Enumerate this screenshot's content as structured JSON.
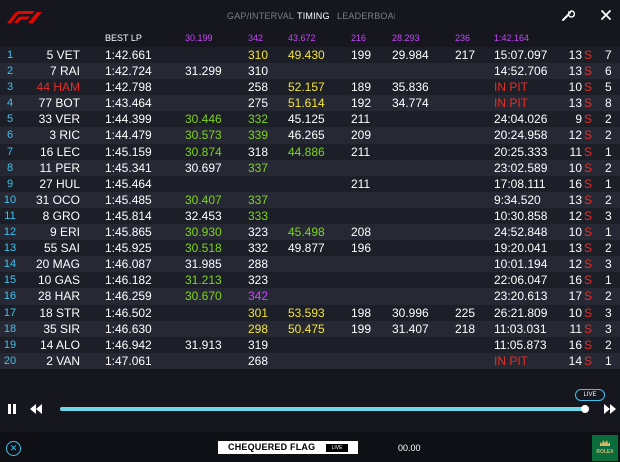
{
  "tabs": [
    {
      "label": "GAP/INTERVAL",
      "active": false
    },
    {
      "label": "TIMING",
      "active": true
    },
    {
      "label": "LEADERBOARD",
      "active": false
    }
  ],
  "headers": {
    "best_lap": "BEST LP",
    "s1_best": "30.199",
    "sp1_best": "342",
    "s2_best": "43.672",
    "sp2_best": "216",
    "s3_best": "28.293",
    "sp3_best": "236",
    "last_best": "1:42.164"
  },
  "rows": [
    {
      "pos": "1",
      "driver": "5 VET",
      "driver_color": "white",
      "best": "1:42.661",
      "s1": "",
      "s1c": "",
      "sp1": "310",
      "sp1c": "yellow",
      "s2": "49.430",
      "s2c": "yellow",
      "sp2": "199",
      "sp2c": "white",
      "s3": "29.984",
      "s3c": "white",
      "sp3": "217",
      "sp3c": "white",
      "last": "15:07.097",
      "lastc": "white",
      "lap": "13",
      "tyre": "S",
      "stint": "7"
    },
    {
      "pos": "2",
      "driver": "7 RAI",
      "driver_color": "white",
      "best": "1:42.724",
      "s1": "31.299",
      "s1c": "white",
      "sp1": "310",
      "sp1c": "white",
      "s2": "",
      "s2c": "",
      "sp2": "",
      "sp2c": "",
      "s3": "",
      "s3c": "",
      "sp3": "",
      "sp3c": "",
      "last": "14:52.706",
      "lastc": "white",
      "lap": "13",
      "tyre": "S",
      "stint": "6"
    },
    {
      "pos": "3",
      "driver": "44 HAM",
      "driver_color": "red",
      "best": "1:42.798",
      "s1": "",
      "s1c": "",
      "sp1": "258",
      "sp1c": "white",
      "s2": "52.157",
      "s2c": "yellow",
      "sp2": "189",
      "sp2c": "white",
      "s3": "35.836",
      "s3c": "white",
      "sp3": "",
      "sp3c": "",
      "last": "IN PIT",
      "lastc": "red",
      "lap": "10",
      "tyre": "S",
      "stint": "5"
    },
    {
      "pos": "4",
      "driver": "77 BOT",
      "driver_color": "white",
      "best": "1:43.464",
      "s1": "",
      "s1c": "",
      "sp1": "275",
      "sp1c": "white",
      "s2": "51.614",
      "s2c": "yellow",
      "sp2": "192",
      "sp2c": "white",
      "s3": "34.774",
      "s3c": "white",
      "sp3": "",
      "sp3c": "",
      "last": "IN PIT",
      "lastc": "red",
      "lap": "13",
      "tyre": "S",
      "stint": "8"
    },
    {
      "pos": "5",
      "driver": "33 VER",
      "driver_color": "white",
      "best": "1:44.399",
      "s1": "30.446",
      "s1c": "green",
      "sp1": "332",
      "sp1c": "green",
      "s2": "45.125",
      "s2c": "white",
      "sp2": "211",
      "sp2c": "white",
      "s3": "",
      "s3c": "",
      "sp3": "",
      "sp3c": "",
      "last": "24:04.026",
      "lastc": "white",
      "lap": "9",
      "tyre": "S",
      "stint": "2"
    },
    {
      "pos": "6",
      "driver": "3 RIC",
      "driver_color": "white",
      "best": "1:44.479",
      "s1": "30.573",
      "s1c": "green",
      "sp1": "339",
      "sp1c": "green",
      "s2": "46.265",
      "s2c": "white",
      "sp2": "209",
      "sp2c": "white",
      "s3": "",
      "s3c": "",
      "sp3": "",
      "sp3c": "",
      "last": "20:24.958",
      "lastc": "white",
      "lap": "12",
      "tyre": "S",
      "stint": "2"
    },
    {
      "pos": "7",
      "driver": "16 LEC",
      "driver_color": "white",
      "best": "1:45.159",
      "s1": "30.874",
      "s1c": "green",
      "sp1": "318",
      "sp1c": "white",
      "s2": "44.886",
      "s2c": "green",
      "sp2": "211",
      "sp2c": "white",
      "s3": "",
      "s3c": "",
      "sp3": "",
      "sp3c": "",
      "last": "20:25.333",
      "lastc": "white",
      "lap": "11",
      "tyre": "S",
      "stint": "1"
    },
    {
      "pos": "8",
      "driver": "11 PER",
      "driver_color": "white",
      "best": "1:45.341",
      "s1": "30.697",
      "s1c": "white",
      "sp1": "337",
      "sp1c": "green",
      "s2": "",
      "s2c": "",
      "sp2": "",
      "sp2c": "",
      "s3": "",
      "s3c": "",
      "sp3": "",
      "sp3c": "",
      "last": "23:02.589",
      "lastc": "white",
      "lap": "10",
      "tyre": "S",
      "stint": "2"
    },
    {
      "pos": "9",
      "driver": "27 HUL",
      "driver_color": "white",
      "best": "1:45.464",
      "s1": "",
      "s1c": "",
      "sp1": "",
      "sp1c": "",
      "s2": "",
      "s2c": "",
      "sp2": "211",
      "sp2c": "white",
      "s3": "",
      "s3c": "",
      "sp3": "",
      "sp3c": "",
      "last": "17:08.111",
      "lastc": "white",
      "lap": "16",
      "tyre": "S",
      "stint": "1"
    },
    {
      "pos": "10",
      "driver": "31 OCO",
      "driver_color": "white",
      "best": "1:45.485",
      "s1": "30.407",
      "s1c": "green",
      "sp1": "337",
      "sp1c": "green",
      "s2": "",
      "s2c": "",
      "sp2": "",
      "sp2c": "",
      "s3": "",
      "s3c": "",
      "sp3": "",
      "sp3c": "",
      "last": "9:34.520",
      "lastc": "white",
      "lap": "13",
      "tyre": "S",
      "stint": "2"
    },
    {
      "pos": "11",
      "driver": "8 GRO",
      "driver_color": "white",
      "best": "1:45.814",
      "s1": "32.453",
      "s1c": "white",
      "sp1": "333",
      "sp1c": "green",
      "s2": "",
      "s2c": "",
      "sp2": "",
      "sp2c": "",
      "s3": "",
      "s3c": "",
      "sp3": "",
      "sp3c": "",
      "last": "10:30.858",
      "lastc": "white",
      "lap": "12",
      "tyre": "S",
      "stint": "3"
    },
    {
      "pos": "12",
      "driver": "9 ERI",
      "driver_color": "white",
      "best": "1:45.865",
      "s1": "30.930",
      "s1c": "green",
      "sp1": "323",
      "sp1c": "white",
      "s2": "45.498",
      "s2c": "green",
      "sp2": "208",
      "sp2c": "white",
      "s3": "",
      "s3c": "",
      "sp3": "",
      "sp3c": "",
      "last": "24:52.848",
      "lastc": "white",
      "lap": "10",
      "tyre": "S",
      "stint": "1"
    },
    {
      "pos": "13",
      "driver": "55 SAI",
      "driver_color": "white",
      "best": "1:45.925",
      "s1": "30.518",
      "s1c": "green",
      "sp1": "332",
      "sp1c": "white",
      "s2": "49.877",
      "s2c": "white",
      "sp2": "196",
      "sp2c": "white",
      "s3": "",
      "s3c": "",
      "sp3": "",
      "sp3c": "",
      "last": "19:20.041",
      "lastc": "white",
      "lap": "13",
      "tyre": "S",
      "stint": "2"
    },
    {
      "pos": "14",
      "driver": "20 MAG",
      "driver_color": "white",
      "best": "1:46.087",
      "s1": "31.985",
      "s1c": "white",
      "sp1": "288",
      "sp1c": "white",
      "s2": "",
      "s2c": "",
      "sp2": "",
      "sp2c": "",
      "s3": "",
      "s3c": "",
      "sp3": "",
      "sp3c": "",
      "last": "10:01.194",
      "lastc": "white",
      "lap": "12",
      "tyre": "S",
      "stint": "3"
    },
    {
      "pos": "15",
      "driver": "10 GAS",
      "driver_color": "white",
      "best": "1:46.182",
      "s1": "31.213",
      "s1c": "green",
      "sp1": "323",
      "sp1c": "white",
      "s2": "",
      "s2c": "",
      "sp2": "",
      "sp2c": "",
      "s3": "",
      "s3c": "",
      "sp3": "",
      "sp3c": "",
      "last": "22:06.047",
      "lastc": "white",
      "lap": "16",
      "tyre": "S",
      "stint": "1"
    },
    {
      "pos": "16",
      "driver": "28 HAR",
      "driver_color": "white",
      "best": "1:46.259",
      "s1": "30.670",
      "s1c": "green",
      "sp1": "342",
      "sp1c": "purple",
      "s2": "",
      "s2c": "",
      "sp2": "",
      "sp2c": "",
      "s3": "",
      "s3c": "",
      "sp3": "",
      "sp3c": "",
      "last": "23:20.613",
      "lastc": "white",
      "lap": "17",
      "tyre": "S",
      "stint": "2"
    },
    {
      "pos": "17",
      "driver": "18 STR",
      "driver_color": "white",
      "best": "1:46.502",
      "s1": "",
      "s1c": "",
      "sp1": "301",
      "sp1c": "yellow",
      "s2": "53.593",
      "s2c": "yellow",
      "sp2": "198",
      "sp2c": "white",
      "s3": "30.996",
      "s3c": "white",
      "sp3": "225",
      "sp3c": "white",
      "last": "26:21.809",
      "lastc": "white",
      "lap": "10",
      "tyre": "S",
      "stint": "3"
    },
    {
      "pos": "18",
      "driver": "35 SIR",
      "driver_color": "white",
      "best": "1:46.630",
      "s1": "",
      "s1c": "",
      "sp1": "298",
      "sp1c": "yellow",
      "s2": "50.475",
      "s2c": "yellow",
      "sp2": "199",
      "sp2c": "white",
      "s3": "31.407",
      "s3c": "white",
      "sp3": "218",
      "sp3c": "white",
      "last": "11:03.031",
      "lastc": "white",
      "lap": "11",
      "tyre": "S",
      "stint": "3"
    },
    {
      "pos": "19",
      "driver": "14 ALO",
      "driver_color": "white",
      "best": "1:46.942",
      "s1": "31.913",
      "s1c": "white",
      "sp1": "319",
      "sp1c": "white",
      "s2": "",
      "s2c": "",
      "sp2": "",
      "sp2c": "",
      "s3": "",
      "s3c": "",
      "sp3": "",
      "sp3c": "",
      "last": "11:05.873",
      "lastc": "white",
      "lap": "16",
      "tyre": "S",
      "stint": "2"
    },
    {
      "pos": "20",
      "driver": "2 VAN",
      "driver_color": "white",
      "best": "1:47.061",
      "s1": "",
      "s1c": "",
      "sp1": "268",
      "sp1c": "white",
      "s2": "",
      "s2c": "",
      "sp2": "",
      "sp2c": "",
      "s3": "",
      "s3c": "",
      "sp3": "",
      "sp3c": "",
      "last": "IN PIT",
      "lastc": "red",
      "lap": "14",
      "tyre": "S",
      "stint": "1"
    }
  ],
  "playback": {
    "live_label": "LIVE",
    "progress": 0.99
  },
  "bottom": {
    "flag_label": "CHEQUERED FLAG",
    "flag_live": "LIVE",
    "clock": "00.00",
    "sponsor": "ROLEX"
  },
  "colors": {
    "accent": "#3fc2ee",
    "green": "#7ed321",
    "yellow": "#f2e43a",
    "purple": "#cc44ff",
    "red": "#e0302a"
  },
  "icons": [
    "f1-logo-icon",
    "wrench-icon",
    "close-icon",
    "pause-icon",
    "rewind-icon",
    "fast-forward-icon",
    "exit-icon",
    "rolex-crown-icon"
  ]
}
